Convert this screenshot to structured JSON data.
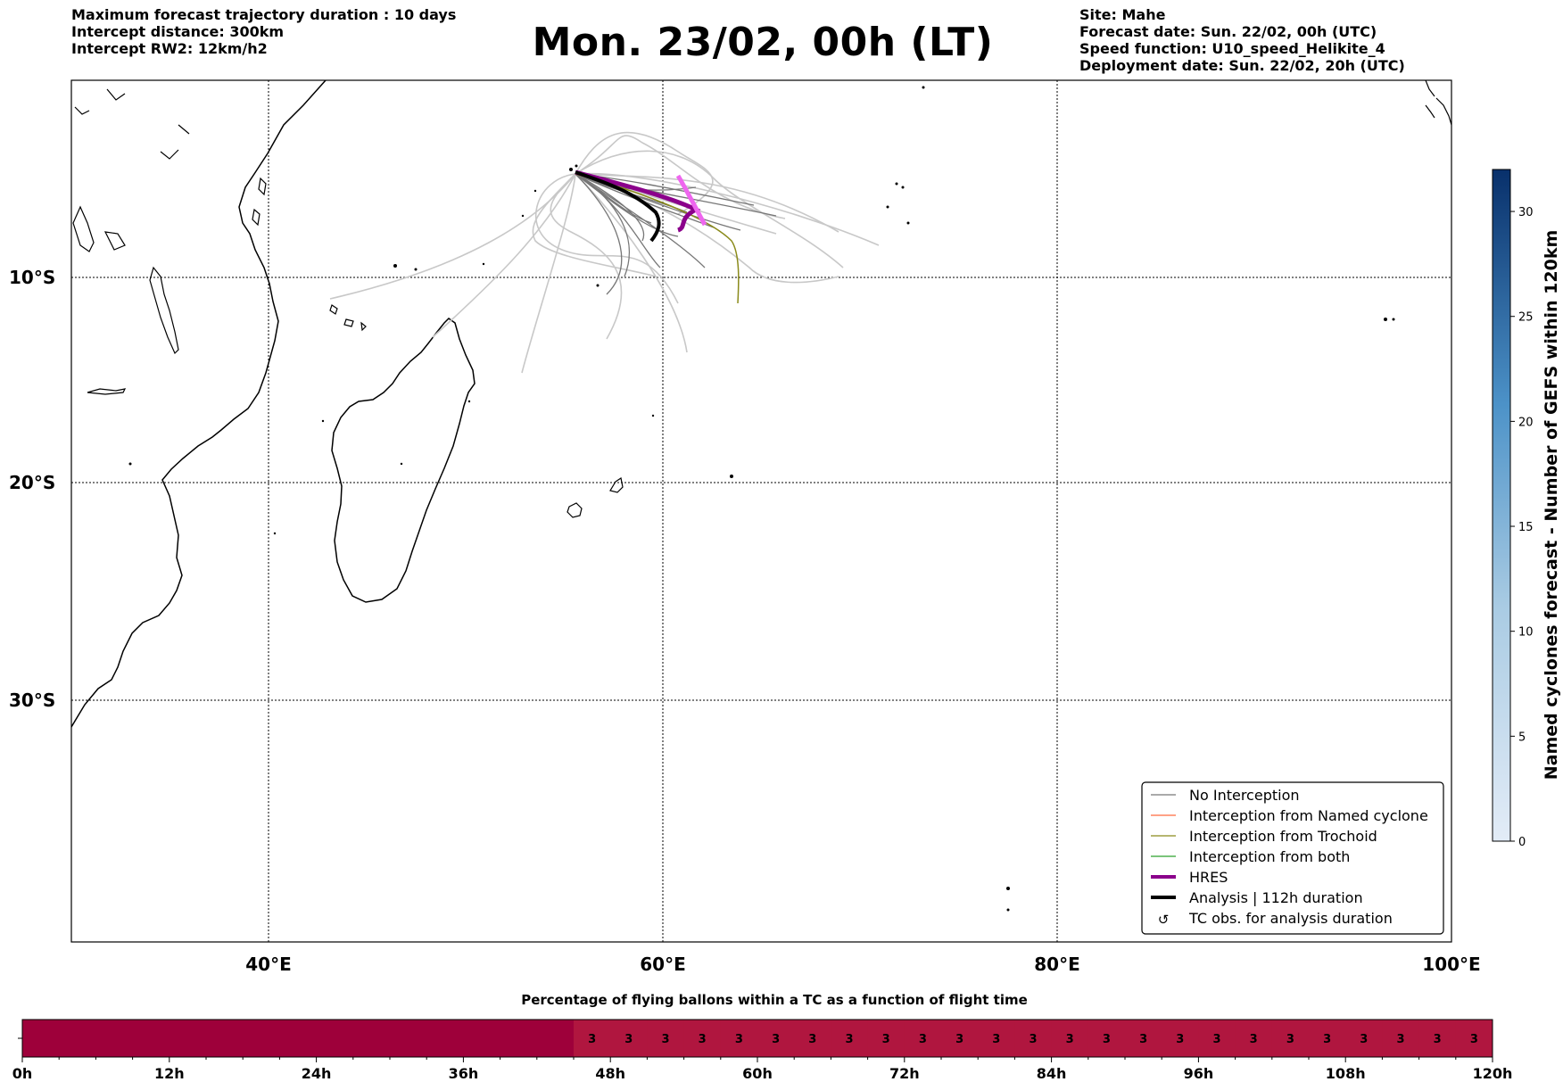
{
  "header_left": [
    "Maximum forecast trajectory duration : 10 days",
    "Intercept distance: 300km",
    "Intercept RW2: 12km/h2"
  ],
  "header_right": [
    "Site: Mahe",
    "Forecast date: Sun. 22/02, 00h (UTC)",
    "Speed function: U10_speed_Helikite_4",
    "Deployment date: Sun. 22/02, 20h (UTC)"
  ],
  "title": "Mon. 23/02, 00h (LT)",
  "map": {
    "lat_labels": [
      "10°S",
      "20°S",
      "30°S"
    ],
    "lon_labels": [
      "40°E",
      "60°E",
      "80°E",
      "100°E"
    ]
  },
  "legend": {
    "items": [
      {
        "label": "No Interception",
        "color": "#777777"
      },
      {
        "label": "Interception from Named cyclone",
        "color": "#ff6a3d"
      },
      {
        "label": "Interception from Trochoid",
        "color": "#8a8a1a"
      },
      {
        "label": "Interception from both",
        "color": "#2ca02c"
      },
      {
        "label": "HRES",
        "color": "#8b008b"
      },
      {
        "label": "Analysis | 112h duration",
        "color": "#000000"
      },
      {
        "label": "TC obs. for analysis duration",
        "icon": "cyclone-icon"
      }
    ]
  },
  "colorbar": {
    "label": "Named cyclones forecast - Number of GEFS within 120km",
    "ticks": [
      "0",
      "5",
      "10",
      "15",
      "20",
      "25",
      "30"
    ],
    "min": 0,
    "max": 32
  },
  "bottom_bar": {
    "title": "Percentage of flying ballons within a TC as a function of flight time",
    "tick_labels": [
      "0h",
      "12h",
      "24h",
      "36h",
      "48h",
      "60h",
      "72h",
      "84h",
      "96h",
      "108h",
      "120h"
    ],
    "value_label": "3",
    "color_dark": "#9e003a",
    "color_light": "#b0163f"
  }
}
